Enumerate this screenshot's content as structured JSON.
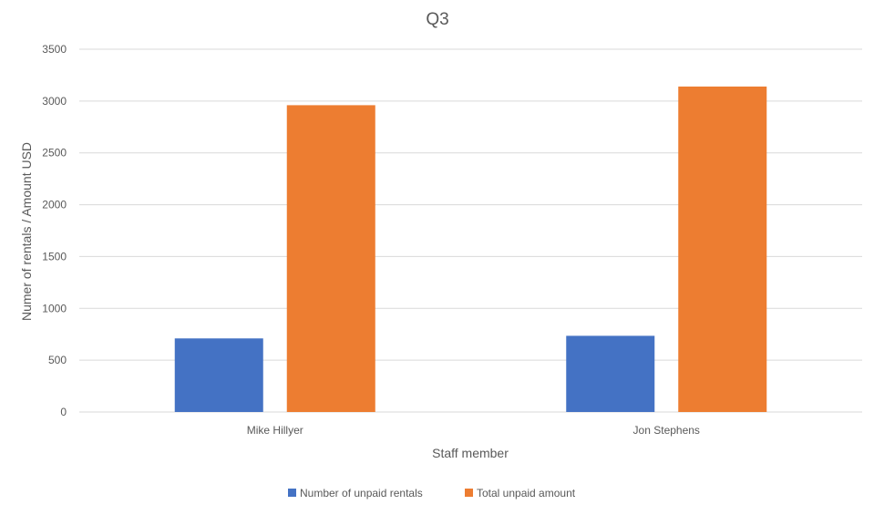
{
  "chart_data": {
    "type": "bar",
    "title": "Q3",
    "xlabel": "Staff member",
    "ylabel": "Numer of rentals / Amount USD",
    "categories": [
      "Mike Hillyer",
      "Jon Stephens"
    ],
    "series": [
      {
        "name": "Number of unpaid rentals",
        "color": "#4472C4",
        "values": [
          710,
          735
        ]
      },
      {
        "name": "Total unpaid amount",
        "color": "#ED7D31",
        "values": [
          2960,
          3140
        ]
      }
    ],
    "ylim": [
      0,
      3500
    ],
    "yticks": [
      "0",
      "500",
      "1000",
      "1500",
      "2000",
      "2500",
      "3000",
      "3500"
    ],
    "grid": true,
    "legend_position": "bottom"
  }
}
